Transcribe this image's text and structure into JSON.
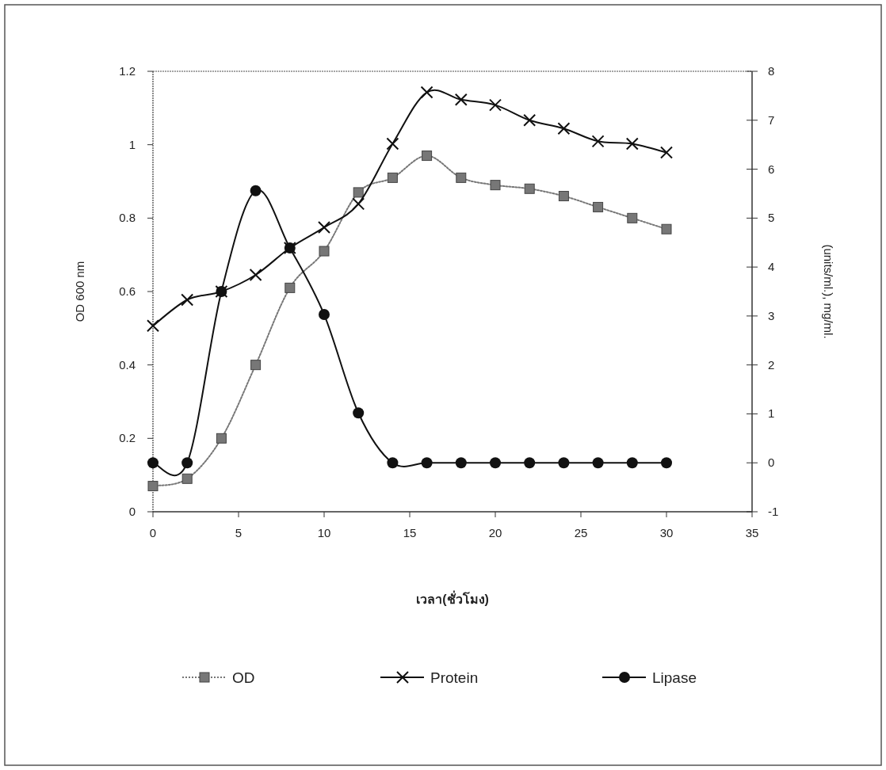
{
  "chart_data": {
    "type": "line",
    "xlabel": "เวลา(ชั่วโมง)",
    "ylabel": "OD 600 nm",
    "y2label": "(units/ml.), mg/ml.",
    "x": [
      0,
      2,
      4,
      6,
      8,
      10,
      12,
      14,
      16,
      18,
      20,
      22,
      24,
      26,
      28,
      30
    ],
    "series": [
      {
        "name": "OD",
        "color": "#777777",
        "marker": "square",
        "line_style": "dotted",
        "values": [
          0.07,
          0.09,
          0.2,
          0.4,
          0.61,
          0.71,
          0.87,
          0.91,
          0.97,
          0.91,
          0.89,
          0.88,
          0.86,
          0.83,
          0.8,
          0.77
        ]
      },
      {
        "name": "Protein",
        "color": "#111111",
        "marker": "cross",
        "line_style": "solid",
        "axis": "y2",
        "values": [
          2.8,
          3.33,
          3.5,
          3.84,
          4.39,
          4.81,
          5.29,
          6.52,
          7.57,
          7.42,
          7.31,
          7.0,
          6.83,
          6.57,
          6.52,
          6.34
        ]
      },
      {
        "name": "Lipase",
        "color": "#111111",
        "marker": "circle",
        "line_style": "solid",
        "axis": "y2",
        "values": [
          0,
          0,
          3.5,
          5.56,
          4.39,
          3.03,
          1.02,
          0,
          0,
          0,
          0,
          0,
          0,
          0,
          0,
          0
        ]
      }
    ],
    "xlim": [
      0,
      35
    ],
    "xticks": [
      0,
      5,
      10,
      15,
      20,
      25,
      30,
      35
    ],
    "ylim": [
      0,
      1.2
    ],
    "yticks": [
      0,
      0.2,
      0.4,
      0.6,
      0.8,
      1,
      1.2
    ],
    "y2lim": [
      -1,
      8
    ],
    "y2ticks": [
      -1,
      0,
      1,
      2,
      3,
      4,
      5,
      6,
      7,
      8
    ],
    "legend": "bottom"
  }
}
